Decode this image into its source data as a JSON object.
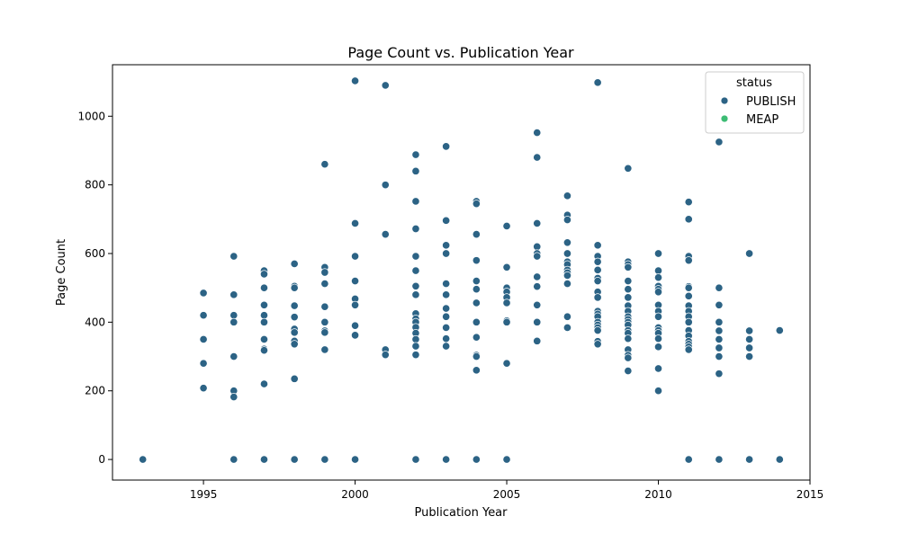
{
  "chart_data": {
    "type": "scatter",
    "title": "Page Count vs. Publication Year",
    "xlabel": "Publication Year",
    "ylabel": "Page Count",
    "xlim": [
      1992,
      2015
    ],
    "ylim": [
      -60,
      1150
    ],
    "xticks": [
      1995,
      2000,
      2005,
      2010,
      2015
    ],
    "yticks": [
      0,
      200,
      400,
      600,
      800,
      1000
    ],
    "grid": false,
    "legend": {
      "title": "status",
      "placement": "top-right",
      "entries": [
        {
          "label": "PUBLISH",
          "color": "#2c6385"
        },
        {
          "label": "MEAP",
          "color": "#3dbc74"
        }
      ]
    },
    "series": [
      {
        "name": "PUBLISH",
        "color": "#2c6385",
        "points": [
          [
            1993,
            0
          ],
          [
            1995,
            485
          ],
          [
            1995,
            420
          ],
          [
            1995,
            350
          ],
          [
            1995,
            280
          ],
          [
            1995,
            208
          ],
          [
            1996,
            592
          ],
          [
            1996,
            480
          ],
          [
            1996,
            420
          ],
          [
            1996,
            400
          ],
          [
            1996,
            300
          ],
          [
            1996,
            200
          ],
          [
            1996,
            182
          ],
          [
            1996,
            0
          ],
          [
            1997,
            550
          ],
          [
            1997,
            540
          ],
          [
            1997,
            500
          ],
          [
            1997,
            450
          ],
          [
            1997,
            420
          ],
          [
            1997,
            400
          ],
          [
            1997,
            350
          ],
          [
            1997,
            322
          ],
          [
            1997,
            318
          ],
          [
            1997,
            220
          ],
          [
            1997,
            0
          ],
          [
            1998,
            570
          ],
          [
            1998,
            505
          ],
          [
            1998,
            500
          ],
          [
            1998,
            448
          ],
          [
            1998,
            415
          ],
          [
            1998,
            380
          ],
          [
            1998,
            370
          ],
          [
            1998,
            345
          ],
          [
            1998,
            336
          ],
          [
            1998,
            235
          ],
          [
            1998,
            0
          ],
          [
            1999,
            860
          ],
          [
            1999,
            560
          ],
          [
            1999,
            545
          ],
          [
            1999,
            512
          ],
          [
            1999,
            445
          ],
          [
            1999,
            400
          ],
          [
            1999,
            375
          ],
          [
            1999,
            370
          ],
          [
            1999,
            320
          ],
          [
            1999,
            0
          ],
          [
            2000,
            1103
          ],
          [
            2000,
            688
          ],
          [
            2000,
            592
          ],
          [
            2000,
            520
          ],
          [
            2000,
            468
          ],
          [
            2000,
            450
          ],
          [
            2000,
            390
          ],
          [
            2000,
            362
          ],
          [
            2000,
            0
          ],
          [
            2001,
            1090
          ],
          [
            2001,
            800
          ],
          [
            2001,
            656
          ],
          [
            2001,
            320
          ],
          [
            2001,
            305
          ],
          [
            2002,
            888
          ],
          [
            2002,
            840
          ],
          [
            2002,
            752
          ],
          [
            2002,
            672
          ],
          [
            2002,
            592
          ],
          [
            2002,
            550
          ],
          [
            2002,
            505
          ],
          [
            2002,
            480
          ],
          [
            2002,
            425
          ],
          [
            2002,
            410
          ],
          [
            2002,
            400
          ],
          [
            2002,
            385
          ],
          [
            2002,
            368
          ],
          [
            2002,
            350
          ],
          [
            2002,
            330
          ],
          [
            2002,
            305
          ],
          [
            2002,
            0
          ],
          [
            2003,
            912
          ],
          [
            2003,
            696
          ],
          [
            2003,
            624
          ],
          [
            2003,
            600
          ],
          [
            2003,
            512
          ],
          [
            2003,
            480
          ],
          [
            2003,
            440
          ],
          [
            2003,
            416
          ],
          [
            2003,
            384
          ],
          [
            2003,
            352
          ],
          [
            2003,
            330
          ],
          [
            2003,
            0
          ],
          [
            2004,
            752
          ],
          [
            2004,
            745
          ],
          [
            2004,
            656
          ],
          [
            2004,
            580
          ],
          [
            2004,
            520
          ],
          [
            2004,
            496
          ],
          [
            2004,
            456
          ],
          [
            2004,
            400
          ],
          [
            2004,
            356
          ],
          [
            2004,
            304
          ],
          [
            2004,
            300
          ],
          [
            2004,
            260
          ],
          [
            2004,
            0
          ],
          [
            2005,
            680
          ],
          [
            2005,
            560
          ],
          [
            2005,
            500
          ],
          [
            2005,
            488
          ],
          [
            2005,
            472
          ],
          [
            2005,
            456
          ],
          [
            2005,
            404
          ],
          [
            2005,
            400
          ],
          [
            2005,
            280
          ],
          [
            2005,
            0
          ],
          [
            2006,
            952
          ],
          [
            2006,
            880
          ],
          [
            2006,
            688
          ],
          [
            2006,
            620
          ],
          [
            2006,
            600
          ],
          [
            2006,
            592
          ],
          [
            2006,
            532
          ],
          [
            2006,
            504
          ],
          [
            2006,
            450
          ],
          [
            2006,
            400
          ],
          [
            2006,
            345
          ],
          [
            2007,
            768
          ],
          [
            2007,
            712
          ],
          [
            2007,
            698
          ],
          [
            2007,
            632
          ],
          [
            2007,
            600
          ],
          [
            2007,
            576
          ],
          [
            2007,
            568
          ],
          [
            2007,
            552
          ],
          [
            2007,
            544
          ],
          [
            2007,
            536
          ],
          [
            2007,
            512
          ],
          [
            2007,
            416
          ],
          [
            2007,
            384
          ],
          [
            2008,
            1098
          ],
          [
            2008,
            624
          ],
          [
            2008,
            592
          ],
          [
            2008,
            576
          ],
          [
            2008,
            552
          ],
          [
            2008,
            528
          ],
          [
            2008,
            520
          ],
          [
            2008,
            488
          ],
          [
            2008,
            472
          ],
          [
            2008,
            432
          ],
          [
            2008,
            424
          ],
          [
            2008,
            416
          ],
          [
            2008,
            400
          ],
          [
            2008,
            392
          ],
          [
            2008,
            384
          ],
          [
            2008,
            376
          ],
          [
            2008,
            344
          ],
          [
            2008,
            336
          ],
          [
            2009,
            848
          ],
          [
            2009,
            576
          ],
          [
            2009,
            568
          ],
          [
            2009,
            560
          ],
          [
            2009,
            520
          ],
          [
            2009,
            496
          ],
          [
            2009,
            472
          ],
          [
            2009,
            448
          ],
          [
            2009,
            432
          ],
          [
            2009,
            416
          ],
          [
            2009,
            408
          ],
          [
            2009,
            400
          ],
          [
            2009,
            392
          ],
          [
            2009,
            376
          ],
          [
            2009,
            368
          ],
          [
            2009,
            352
          ],
          [
            2009,
            320
          ],
          [
            2009,
            304
          ],
          [
            2009,
            296
          ],
          [
            2009,
            258
          ],
          [
            2010,
            600
          ],
          [
            2010,
            550
          ],
          [
            2010,
            530
          ],
          [
            2010,
            505
          ],
          [
            2010,
            496
          ],
          [
            2010,
            488
          ],
          [
            2010,
            450
          ],
          [
            2010,
            432
          ],
          [
            2010,
            416
          ],
          [
            2010,
            384
          ],
          [
            2010,
            376
          ],
          [
            2010,
            368
          ],
          [
            2010,
            352
          ],
          [
            2010,
            328
          ],
          [
            2010,
            265
          ],
          [
            2010,
            200
          ],
          [
            2011,
            750
          ],
          [
            2011,
            700
          ],
          [
            2011,
            592
          ],
          [
            2011,
            580
          ],
          [
            2011,
            504
          ],
          [
            2011,
            500
          ],
          [
            2011,
            476
          ],
          [
            2011,
            448
          ],
          [
            2011,
            432
          ],
          [
            2011,
            416
          ],
          [
            2011,
            400
          ],
          [
            2011,
            376
          ],
          [
            2011,
            360
          ],
          [
            2011,
            344
          ],
          [
            2011,
            336
          ],
          [
            2011,
            328
          ],
          [
            2011,
            320
          ],
          [
            2011,
            0
          ],
          [
            2012,
            925
          ],
          [
            2012,
            500
          ],
          [
            2012,
            450
          ],
          [
            2012,
            400
          ],
          [
            2012,
            375
          ],
          [
            2012,
            350
          ],
          [
            2012,
            325
          ],
          [
            2012,
            300
          ],
          [
            2012,
            250
          ],
          [
            2012,
            0
          ],
          [
            2013,
            600
          ],
          [
            2013,
            375
          ],
          [
            2013,
            350
          ],
          [
            2013,
            325
          ],
          [
            2013,
            300
          ],
          [
            2013,
            0
          ],
          [
            2014,
            376
          ],
          [
            2014,
            0
          ]
        ]
      },
      {
        "name": "MEAP",
        "color": "#3dbc74",
        "points": []
      }
    ]
  }
}
